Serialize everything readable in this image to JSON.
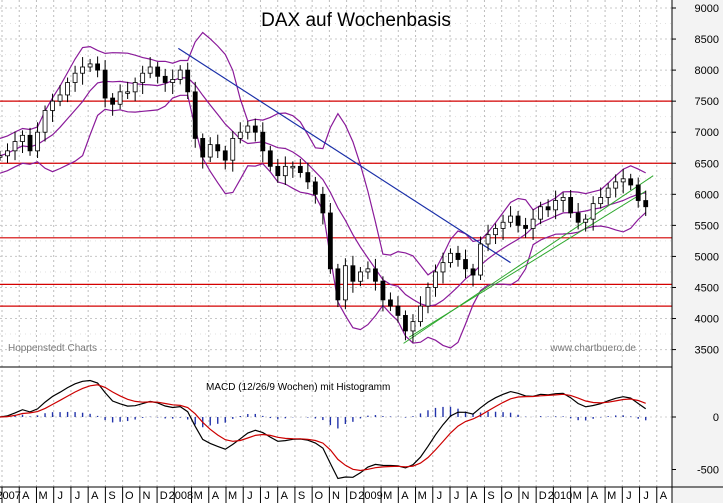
{
  "chart_data": {
    "type": "candlestick",
    "title": "DAX auf Wochenbasis",
    "source_left": "Hoppenstedt Charts",
    "source_right": "www.chartbuero.de",
    "price_axis": {
      "min": 3300,
      "max": 9000,
      "ticks": [
        "9000",
        "8500",
        "8000",
        "7500",
        "7000",
        "6500",
        "6000",
        "5500",
        "5000",
        "4500",
        "4000",
        "3500"
      ],
      "tick_values": [
        9000,
        8500,
        8000,
        7500,
        7000,
        6500,
        6000,
        5500,
        5000,
        4500,
        4000,
        3500
      ]
    },
    "horizontal_levels": [
      7500,
      6500,
      5300,
      4550,
      4200
    ],
    "time_axis": {
      "labels": [
        "2007",
        "A",
        "M",
        "J",
        "J",
        "A",
        "S",
        "O",
        "N",
        "D",
        "2008",
        "M",
        "A",
        "M",
        "J",
        "J",
        "A",
        "S",
        "O",
        "N",
        "D",
        "2009",
        "M",
        "A",
        "M",
        "J",
        "J",
        "A",
        "S",
        "O",
        "N",
        "D",
        "2010",
        "M",
        "A",
        "M",
        "J",
        "J",
        "A"
      ],
      "start": 2007.0,
      "end": 2010.58
    },
    "price_series": [
      [
        2007.0,
        6620
      ],
      [
        2007.04,
        6700
      ],
      [
        2007.08,
        6850
      ],
      [
        2007.12,
        6950
      ],
      [
        2007.16,
        6700
      ],
      [
        2007.2,
        7000
      ],
      [
        2007.24,
        7350
      ],
      [
        2007.28,
        7500
      ],
      [
        2007.32,
        7600
      ],
      [
        2007.36,
        7800
      ],
      [
        2007.4,
        7950
      ],
      [
        2007.44,
        8050
      ],
      [
        2007.48,
        8100
      ],
      [
        2007.52,
        8000
      ],
      [
        2007.56,
        7550
      ],
      [
        2007.6,
        7450
      ],
      [
        2007.64,
        7650
      ],
      [
        2007.68,
        7650
      ],
      [
        2007.72,
        7800
      ],
      [
        2007.76,
        7950
      ],
      [
        2007.8,
        8050
      ],
      [
        2007.84,
        7900
      ],
      [
        2007.88,
        7800
      ],
      [
        2007.92,
        7850
      ],
      [
        2007.96,
        8000
      ],
      [
        2008.0,
        7650
      ],
      [
        2008.04,
        6900
      ],
      [
        2008.08,
        6600
      ],
      [
        2008.12,
        6800
      ],
      [
        2008.16,
        6700
      ],
      [
        2008.2,
        6550
      ],
      [
        2008.24,
        6900
      ],
      [
        2008.28,
        7000
      ],
      [
        2008.32,
        7100
      ],
      [
        2008.36,
        7000
      ],
      [
        2008.4,
        6700
      ],
      [
        2008.44,
        6450
      ],
      [
        2008.48,
        6300
      ],
      [
        2008.52,
        6450
      ],
      [
        2008.56,
        6450
      ],
      [
        2008.6,
        6350
      ],
      [
        2008.64,
        6200
      ],
      [
        2008.68,
        6000
      ],
      [
        2008.72,
        5700
      ],
      [
        2008.76,
        4800
      ],
      [
        2008.8,
        4300
      ],
      [
        2008.84,
        4850
      ],
      [
        2008.88,
        4600
      ],
      [
        2008.92,
        4750
      ],
      [
        2008.96,
        4800
      ],
      [
        2009.0,
        4600
      ],
      [
        2009.04,
        4300
      ],
      [
        2009.08,
        4200
      ],
      [
        2009.12,
        4050
      ],
      [
        2009.16,
        3800
      ],
      [
        2009.2,
        3950
      ],
      [
        2009.24,
        4200
      ],
      [
        2009.28,
        4500
      ],
      [
        2009.32,
        4750
      ],
      [
        2009.36,
        4900
      ],
      [
        2009.4,
        5050
      ],
      [
        2009.44,
        4950
      ],
      [
        2009.48,
        4800
      ],
      [
        2009.52,
        4700
      ],
      [
        2009.56,
        5200
      ],
      [
        2009.6,
        5350
      ],
      [
        2009.64,
        5450
      ],
      [
        2009.68,
        5550
      ],
      [
        2009.72,
        5650
      ],
      [
        2009.76,
        5500
      ],
      [
        2009.8,
        5450
      ],
      [
        2009.84,
        5600
      ],
      [
        2009.88,
        5800
      ],
      [
        2009.92,
        5750
      ],
      [
        2009.96,
        5900
      ],
      [
        2010.0,
        5950
      ],
      [
        2010.04,
        5700
      ],
      [
        2010.08,
        5550
      ],
      [
        2010.12,
        5600
      ],
      [
        2010.16,
        5850
      ],
      [
        2010.2,
        5950
      ],
      [
        2010.24,
        6100
      ],
      [
        2010.28,
        6200
      ],
      [
        2010.32,
        6250
      ],
      [
        2010.36,
        6150
      ],
      [
        2010.4,
        5900
      ],
      [
        2010.44,
        5800
      ]
    ],
    "macd_panel": {
      "label": "MACD (12/26/9 Wochen) mit Histogramm",
      "ticks": [
        "0",
        "-500"
      ],
      "tick_values": [
        0,
        -500
      ],
      "range": [
        -600,
        300
      ]
    }
  }
}
